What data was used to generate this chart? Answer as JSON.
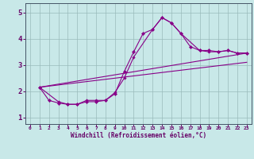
{
  "xlabel": "Windchill (Refroidissement éolien,°C)",
  "background_color": "#c8e8e8",
  "line_color": "#880088",
  "grid_color": "#99bbbb",
  "xlim": [
    -0.5,
    23.5
  ],
  "ylim": [
    0.75,
    5.35
  ],
  "xticks": [
    0,
    1,
    2,
    3,
    4,
    5,
    6,
    7,
    8,
    9,
    10,
    11,
    12,
    13,
    14,
    15,
    16,
    17,
    18,
    19,
    20,
    21,
    22,
    23
  ],
  "yticks": [
    1,
    2,
    3,
    4,
    5
  ],
  "line1_x": [
    1,
    2,
    3,
    4,
    5,
    6,
    7,
    8,
    9,
    10,
    11,
    12,
    13,
    14,
    15,
    16,
    17,
    18,
    19,
    20,
    21,
    22,
    23
  ],
  "line1_y": [
    2.15,
    1.65,
    1.55,
    1.5,
    1.5,
    1.6,
    1.6,
    1.65,
    1.9,
    2.75,
    3.5,
    4.2,
    4.35,
    4.8,
    4.6,
    4.2,
    3.7,
    3.55,
    3.55,
    3.5,
    3.55,
    3.45,
    3.45
  ],
  "line2_x": [
    1,
    3,
    4,
    5,
    6,
    7,
    8,
    9,
    10,
    11,
    13,
    14,
    15,
    16,
    18,
    19,
    20,
    21,
    22,
    23
  ],
  "line2_y": [
    2.15,
    1.6,
    1.5,
    1.5,
    1.65,
    1.65,
    1.65,
    1.95,
    2.5,
    3.3,
    4.35,
    4.8,
    4.6,
    4.2,
    3.55,
    3.5,
    3.5,
    3.55,
    3.45,
    3.45
  ],
  "line3_x": [
    1,
    23
  ],
  "line3_y": [
    2.15,
    3.45
  ],
  "line4_x": [
    1,
    23
  ],
  "line4_y": [
    2.15,
    3.1
  ]
}
